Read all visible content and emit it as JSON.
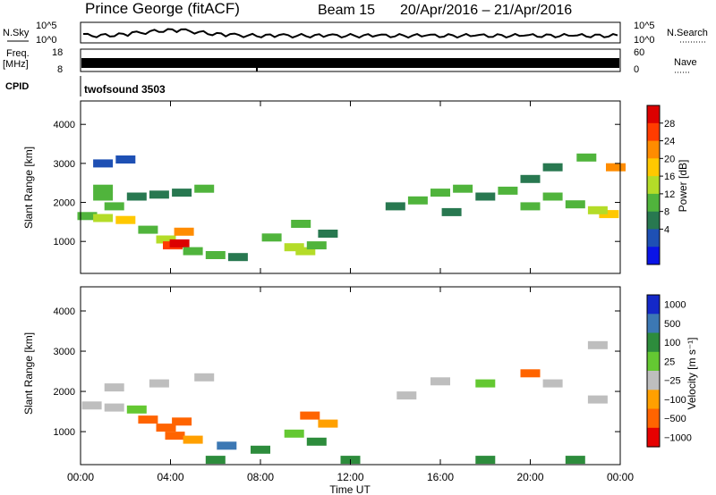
{
  "header": {
    "station": "Prince George (fitACF)",
    "beam": "Beam 15",
    "dates": "20/Apr/2016 – 21/Apr/2016"
  },
  "top_panels": {
    "nsky_label": "N.Sky",
    "nsearch_label": "N.Search",
    "freq_label_line1": "Freq.",
    "freq_label_line2": "[MHz]",
    "nave_label": "Nave",
    "cpid_label": "CPID",
    "cpid_value": "twofsound 3503",
    "noise_ticks_left": [
      "10^5",
      "10^0"
    ],
    "noise_ticks_right": [
      "10^5",
      "10^0"
    ],
    "freq_ticks": [
      "18",
      "8"
    ],
    "nave_ticks": [
      "60",
      "0"
    ]
  },
  "time_axis": {
    "title": "Time UT",
    "ticks": [
      "00:00",
      "04:00",
      "08:00",
      "12:00",
      "16:00",
      "20:00",
      "00:00"
    ]
  },
  "power_panel": {
    "ylabel": "Slant Range [km]",
    "yticks": [
      "4000",
      "3000",
      "2000",
      "1000"
    ],
    "colorbar_title": "Power [dB]",
    "colorbar_ticks": [
      "28",
      "24",
      "20",
      "16",
      "12",
      "8",
      "4"
    ],
    "colors": [
      "#0a14e6",
      "#1e50b4",
      "#287850",
      "#50b43c",
      "#b4dc28",
      "#ffc800",
      "#ff8c00",
      "#ff3c00",
      "#dc0000"
    ]
  },
  "velocity_panel": {
    "ylabel": "Slant Range [km]",
    "yticks": [
      "4000",
      "3000",
      "2000",
      "1000"
    ],
    "colorbar_title": "Velocity [m s⁻¹]",
    "colorbar_ticks": [
      "1000",
      "500",
      "100",
      "25",
      "−25",
      "−100",
      "−500",
      "−1000"
    ],
    "colors": [
      "#1428c8",
      "#3c78b4",
      "#2d8c3c",
      "#64c832",
      "#bebebe",
      "#ffa000",
      "#ff6400",
      "#e60000"
    ]
  },
  "chart_data": [
    {
      "type": "heatmap",
      "title": "Power [dB]",
      "xlabel": "Time UT",
      "ylabel": "Slant Range [km]",
      "xlim": [
        0,
        24
      ],
      "ylim": [
        180,
        4600
      ],
      "zlim": [
        0,
        30
      ],
      "series": [
        {
          "name": "",
          "points": [
            [
              0.3,
              1650,
              10
            ],
            [
              1.0,
              1600,
              14
            ],
            [
              2.0,
              1550,
              18
            ],
            [
              1.5,
              1900,
              10
            ],
            [
              2.5,
              2150,
              8
            ],
            [
              3.5,
              2200,
              9
            ],
            [
              4.5,
              2250,
              8
            ],
            [
              5.5,
              2350,
              10
            ],
            [
              1.0,
              2150,
              12
            ],
            [
              1.0,
              2350,
              10
            ],
            [
              1.0,
              3000,
              6
            ],
            [
              2.0,
              3100,
              6
            ],
            [
              3.0,
              1300,
              10
            ],
            [
              3.8,
              1050,
              14
            ],
            [
              4.1,
              900,
              24
            ],
            [
              4.4,
              950,
              28
            ],
            [
              4.6,
              1250,
              20
            ],
            [
              5.0,
              750,
              12
            ],
            [
              6.0,
              650,
              10
            ],
            [
              7.0,
              600,
              8
            ],
            [
              8.5,
              1100,
              12
            ],
            [
              9.5,
              850,
              14
            ],
            [
              10.0,
              750,
              16
            ],
            [
              10.5,
              900,
              12
            ],
            [
              9.8,
              1450,
              10
            ],
            [
              11.0,
              1200,
              8
            ],
            [
              14.0,
              1900,
              8
            ],
            [
              15.0,
              2050,
              10
            ],
            [
              16.0,
              2250,
              12
            ],
            [
              17.0,
              2350,
              10
            ],
            [
              18.0,
              2150,
              8
            ],
            [
              19.0,
              2300,
              10
            ],
            [
              20.0,
              2600,
              8
            ],
            [
              21.0,
              2150,
              10
            ],
            [
              22.0,
              1950,
              12
            ],
            [
              23.5,
              1700,
              18
            ],
            [
              23.0,
              1800,
              14
            ],
            [
              21.0,
              2900,
              8
            ],
            [
              22.5,
              3150,
              10
            ],
            [
              23.8,
              2900,
              20
            ],
            [
              16.5,
              1750,
              8
            ],
            [
              20.0,
              1900,
              10
            ]
          ]
        }
      ]
    },
    {
      "type": "heatmap",
      "title": "Velocity [m s⁻¹]",
      "xlabel": "Time UT",
      "ylabel": "Slant Range [km]",
      "xlim": [
        0,
        24
      ],
      "ylim": [
        180,
        4600
      ],
      "zlim": [
        -1000,
        1000
      ],
      "series": [
        {
          "name": "",
          "points": [
            [
              0.5,
              1650,
              0
            ],
            [
              1.5,
              1600,
              0
            ],
            [
              2.5,
              1550,
              5
            ],
            [
              1.5,
              2100,
              0
            ],
            [
              3.5,
              2200,
              0
            ],
            [
              5.5,
              2350,
              0
            ],
            [
              3.0,
              1300,
              -150
            ],
            [
              3.8,
              1100,
              -200
            ],
            [
              4.2,
              900,
              -150
            ],
            [
              4.5,
              1250,
              -120
            ],
            [
              5.0,
              800,
              -80
            ],
            [
              6.5,
              650,
              150
            ],
            [
              8.0,
              550,
              60
            ],
            [
              9.5,
              950,
              5
            ],
            [
              10.5,
              750,
              40
            ],
            [
              11.0,
              1200,
              -80
            ],
            [
              10.2,
              1400,
              -120
            ],
            [
              14.5,
              1900,
              0
            ],
            [
              16.0,
              2250,
              0
            ],
            [
              18.0,
              2200,
              5
            ],
            [
              20.0,
              2450,
              -150
            ],
            [
              21.0,
              2200,
              0
            ],
            [
              23.0,
              1800,
              0
            ],
            [
              23.0,
              3150,
              0
            ],
            [
              6.0,
              300,
              80
            ],
            [
              12.0,
              300,
              60
            ],
            [
              18.0,
              300,
              80
            ],
            [
              22.0,
              300,
              70
            ]
          ]
        }
      ]
    }
  ]
}
